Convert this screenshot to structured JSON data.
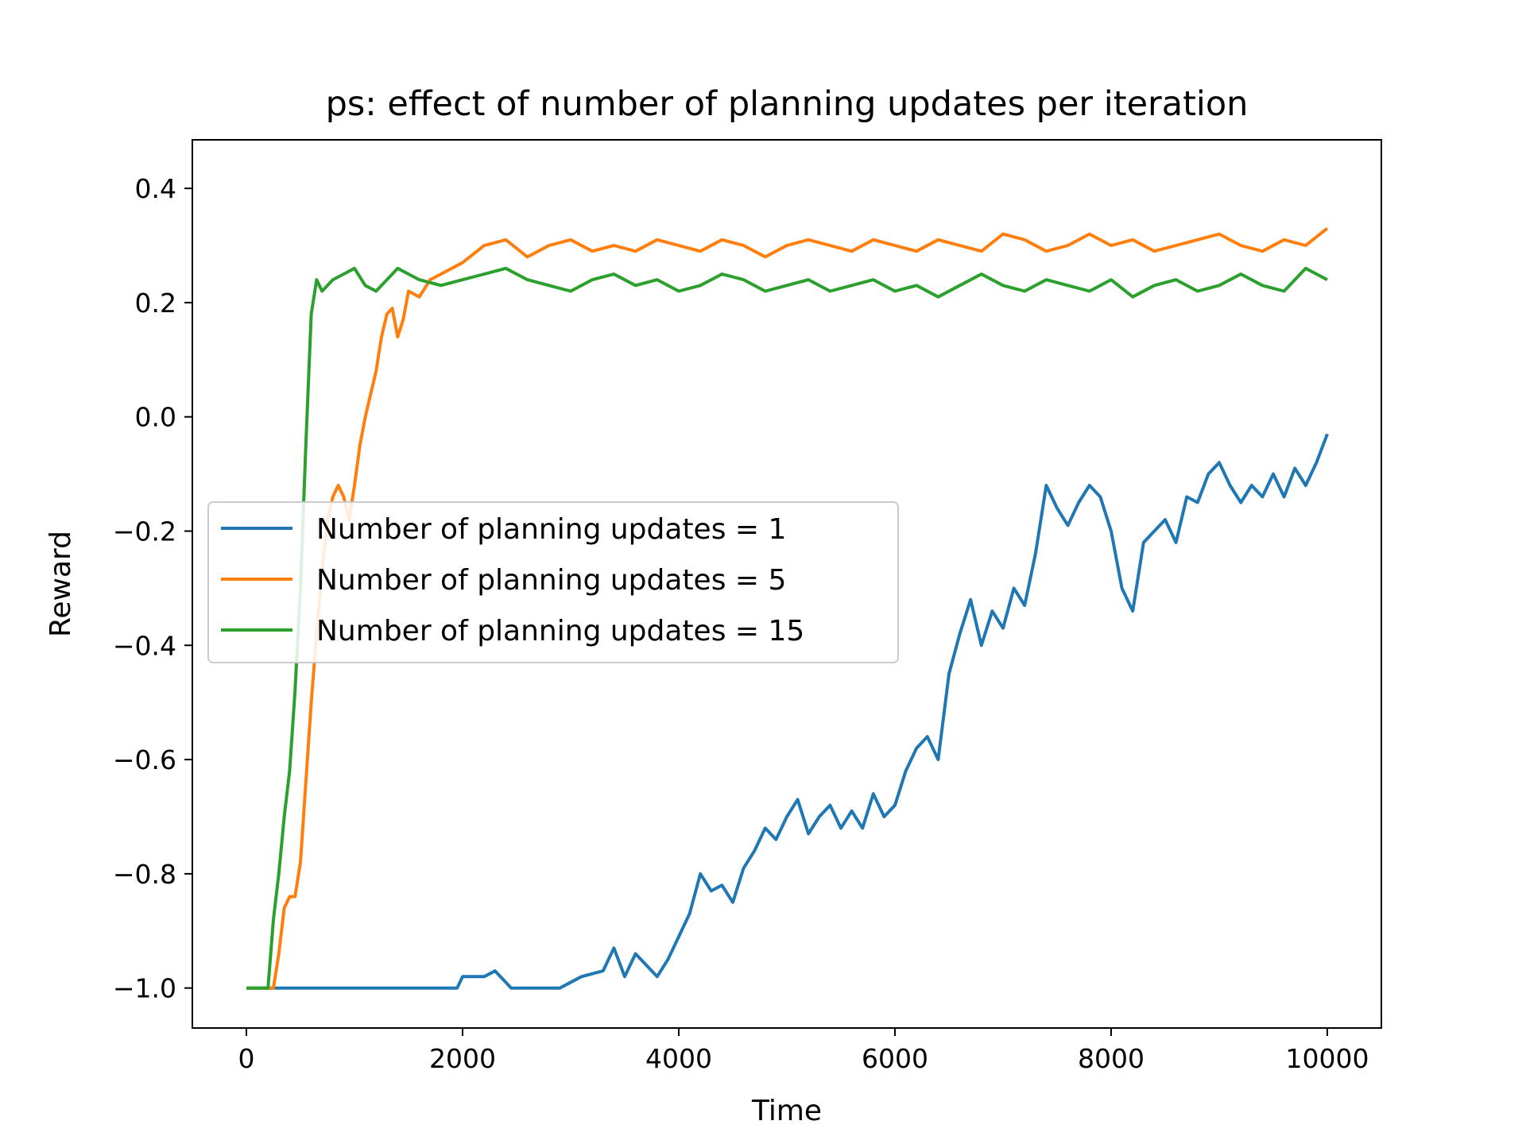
{
  "chart_data": {
    "type": "line",
    "title": "ps: effect of number of planning updates per iteration",
    "xlabel": "Time",
    "ylabel": "Reward",
    "xlim": [
      -500,
      10500
    ],
    "ylim": [
      -1.07,
      0.485
    ],
    "xticks": [
      0,
      2000,
      4000,
      6000,
      8000,
      10000
    ],
    "xtick_labels": [
      "0",
      "2000",
      "4000",
      "6000",
      "8000",
      "10000"
    ],
    "yticks": [
      -1.0,
      -0.8,
      -0.6,
      -0.4,
      -0.2,
      0.0,
      0.2,
      0.4
    ],
    "ytick_labels": [
      "−1.0",
      "−0.8",
      "−0.6",
      "−0.4",
      "−0.2",
      "0.0",
      "0.2",
      "0.4"
    ],
    "grid": false,
    "legend_position": "center-left",
    "series": [
      {
        "name": "Number of planning updates = 1",
        "color": "#1f77b4",
        "x": [
          0,
          1950,
          2000,
          2200,
          2300,
          2450,
          2900,
          3100,
          3300,
          3400,
          3500,
          3600,
          3700,
          3800,
          3900,
          4000,
          4100,
          4200,
          4300,
          4400,
          4500,
          4600,
          4700,
          4800,
          4900,
          5000,
          5100,
          5200,
          5300,
          5400,
          5500,
          5600,
          5700,
          5800,
          5900,
          6000,
          6100,
          6200,
          6300,
          6400,
          6500,
          6600,
          6700,
          6800,
          6900,
          7000,
          7100,
          7200,
          7300,
          7400,
          7500,
          7600,
          7700,
          7800,
          7900,
          8000,
          8100,
          8200,
          8300,
          8400,
          8500,
          8600,
          8700,
          8800,
          8900,
          9000,
          9100,
          9200,
          9300,
          9400,
          9500,
          9600,
          9700,
          9800,
          9900,
          10000
        ],
        "y": [
          -1.0,
          -1.0,
          -0.98,
          -0.98,
          -0.97,
          -1.0,
          -1.0,
          -0.98,
          -0.97,
          -0.93,
          -0.98,
          -0.94,
          -0.96,
          -0.98,
          -0.95,
          -0.91,
          -0.87,
          -0.8,
          -0.83,
          -0.82,
          -0.85,
          -0.79,
          -0.76,
          -0.72,
          -0.74,
          -0.7,
          -0.67,
          -0.73,
          -0.7,
          -0.68,
          -0.72,
          -0.69,
          -0.72,
          -0.66,
          -0.7,
          -0.68,
          -0.62,
          -0.58,
          -0.56,
          -0.6,
          -0.45,
          -0.38,
          -0.32,
          -0.4,
          -0.34,
          -0.37,
          -0.3,
          -0.33,
          -0.24,
          -0.12,
          -0.16,
          -0.19,
          -0.15,
          -0.12,
          -0.14,
          -0.2,
          -0.3,
          -0.34,
          -0.22,
          -0.2,
          -0.18,
          -0.22,
          -0.14,
          -0.15,
          -0.1,
          -0.08,
          -0.12,
          -0.15,
          -0.12,
          -0.14,
          -0.1,
          -0.14,
          -0.09,
          -0.12,
          -0.08,
          -0.03
        ]
      },
      {
        "name": "Number of planning updates = 5",
        "color": "#ff7f0e",
        "x": [
          0,
          250,
          300,
          350,
          400,
          450,
          500,
          550,
          600,
          650,
          700,
          750,
          800,
          850,
          900,
          950,
          1000,
          1050,
          1100,
          1150,
          1200,
          1250,
          1300,
          1350,
          1400,
          1450,
          1500,
          1600,
          1700,
          1800,
          1900,
          2000,
          2200,
          2400,
          2600,
          2800,
          3000,
          3200,
          3400,
          3600,
          3800,
          4000,
          4200,
          4400,
          4600,
          4800,
          5000,
          5200,
          5400,
          5600,
          5800,
          6000,
          6200,
          6400,
          6600,
          6800,
          7000,
          7200,
          7400,
          7600,
          7800,
          8000,
          8200,
          8400,
          8600,
          8800,
          9000,
          9200,
          9400,
          9600,
          9800,
          10000
        ],
        "y": [
          -1.0,
          -1.0,
          -0.94,
          -0.86,
          -0.84,
          -0.84,
          -0.78,
          -0.64,
          -0.5,
          -0.38,
          -0.27,
          -0.18,
          -0.14,
          -0.12,
          -0.14,
          -0.18,
          -0.12,
          -0.05,
          0.0,
          0.04,
          0.08,
          0.14,
          0.18,
          0.19,
          0.14,
          0.17,
          0.22,
          0.21,
          0.24,
          0.25,
          0.26,
          0.27,
          0.3,
          0.31,
          0.28,
          0.3,
          0.31,
          0.29,
          0.3,
          0.29,
          0.31,
          0.3,
          0.29,
          0.31,
          0.3,
          0.28,
          0.3,
          0.31,
          0.3,
          0.29,
          0.31,
          0.3,
          0.29,
          0.31,
          0.3,
          0.29,
          0.32,
          0.31,
          0.29,
          0.3,
          0.32,
          0.3,
          0.31,
          0.29,
          0.3,
          0.31,
          0.32,
          0.3,
          0.29,
          0.31,
          0.3,
          0.33
        ]
      },
      {
        "name": "Number of planning updates = 15",
        "color": "#2ca02c",
        "x": [
          0,
          200,
          250,
          300,
          350,
          400,
          450,
          500,
          550,
          600,
          650,
          700,
          800,
          900,
          1000,
          1100,
          1200,
          1300,
          1400,
          1500,
          1600,
          1800,
          2000,
          2200,
          2400,
          2600,
          2800,
          3000,
          3200,
          3400,
          3600,
          3800,
          4000,
          4200,
          4400,
          4600,
          4800,
          5000,
          5200,
          5400,
          5600,
          5800,
          6000,
          6200,
          6400,
          6600,
          6800,
          7000,
          7200,
          7400,
          7600,
          7800,
          8000,
          8200,
          8400,
          8600,
          8800,
          9000,
          9200,
          9400,
          9600,
          9800,
          10000
        ],
        "y": [
          -1.0,
          -1.0,
          -0.88,
          -0.8,
          -0.7,
          -0.62,
          -0.48,
          -0.3,
          -0.05,
          0.18,
          0.24,
          0.22,
          0.24,
          0.25,
          0.26,
          0.23,
          0.22,
          0.24,
          0.26,
          0.25,
          0.24,
          0.23,
          0.24,
          0.25,
          0.26,
          0.24,
          0.23,
          0.22,
          0.24,
          0.25,
          0.23,
          0.24,
          0.22,
          0.23,
          0.25,
          0.24,
          0.22,
          0.23,
          0.24,
          0.22,
          0.23,
          0.24,
          0.22,
          0.23,
          0.21,
          0.23,
          0.25,
          0.23,
          0.22,
          0.24,
          0.23,
          0.22,
          0.24,
          0.21,
          0.23,
          0.24,
          0.22,
          0.23,
          0.25,
          0.23,
          0.22,
          0.26,
          0.24
        ]
      }
    ]
  }
}
